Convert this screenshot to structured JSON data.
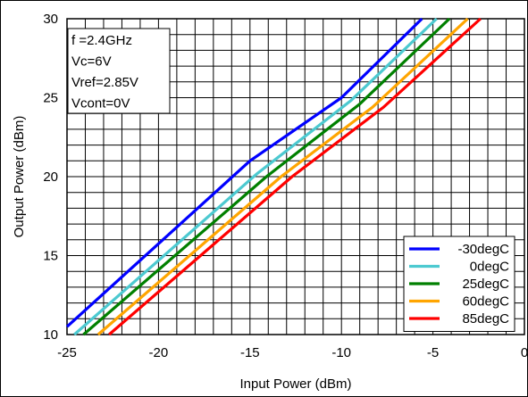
{
  "chart_data": {
    "type": "line",
    "title": "",
    "xlabel": "Input Power (dBm)",
    "ylabel": "Output Power (dBm)",
    "xlim": [
      -25,
      0
    ],
    "ylim": [
      10,
      30
    ],
    "x_ticks": [
      "-25",
      "-20",
      "-15",
      "-10",
      "-5",
      "0"
    ],
    "y_ticks": [
      "10",
      "15",
      "20",
      "25",
      "30"
    ],
    "grid": true,
    "legend_position": "bottom-right",
    "annotation": [
      "f =2.4GHz",
      "Vc=6V",
      "Vref=2.85V",
      "Vcont=0V"
    ],
    "series": [
      {
        "name": "-30degC",
        "color": "#0000ff",
        "x": [
          -25,
          -15,
          -10,
          -5.6
        ],
        "y": [
          10.5,
          21.0,
          25.0,
          30.0
        ]
      },
      {
        "name": "0degC",
        "color": "#4cc9d0",
        "x": [
          -24.6,
          -14.6,
          -9.5,
          -4.8
        ],
        "y": [
          10.0,
          20.2,
          24.8,
          30.0
        ]
      },
      {
        "name": "25degC",
        "color": "#008000",
        "x": [
          -24.1,
          -14.1,
          -9.0,
          -4.1
        ],
        "y": [
          10.0,
          20.0,
          24.6,
          30.0
        ]
      },
      {
        "name": "60degC",
        "color": "#ffa500",
        "x": [
          -23.3,
          -13.3,
          -8.3,
          -3.1
        ],
        "y": [
          10.0,
          20.0,
          24.4,
          30.0
        ]
      },
      {
        "name": "85degC",
        "color": "#ff0000",
        "x": [
          -22.7,
          -12.7,
          -7.7,
          -2.4
        ],
        "y": [
          10.0,
          20.0,
          24.4,
          30.0
        ]
      }
    ]
  }
}
